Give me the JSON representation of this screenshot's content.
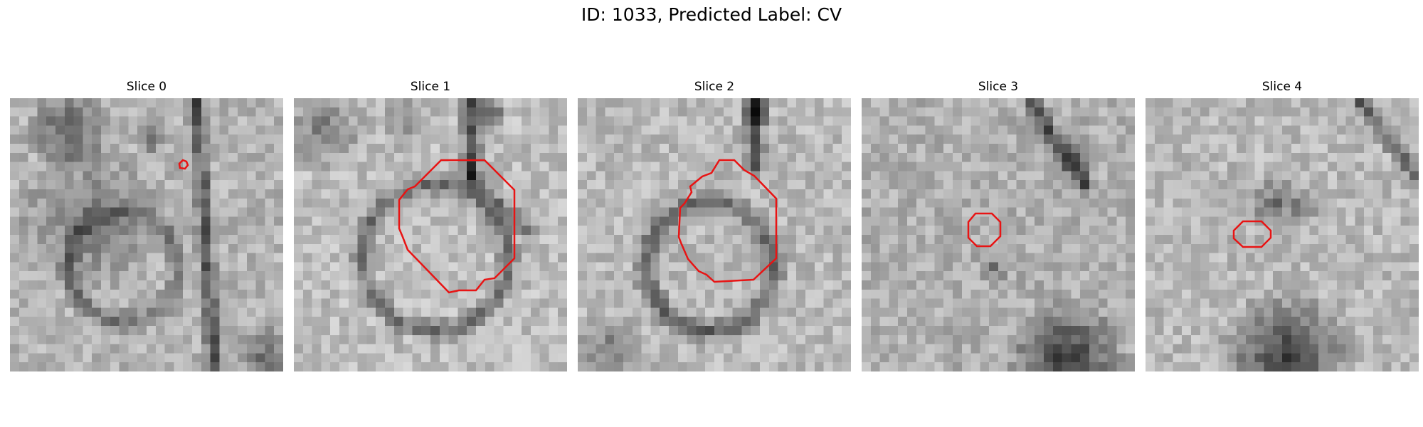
{
  "figure": {
    "title": "ID: 1033, Predicted Label: CV",
    "contour_color": "#e81414"
  },
  "slices": [
    {
      "label": "Slice 0"
    },
    {
      "label": "Slice 1"
    },
    {
      "label": "Slice 2"
    },
    {
      "label": "Slice 3"
    },
    {
      "label": "Slice 4"
    }
  ]
}
